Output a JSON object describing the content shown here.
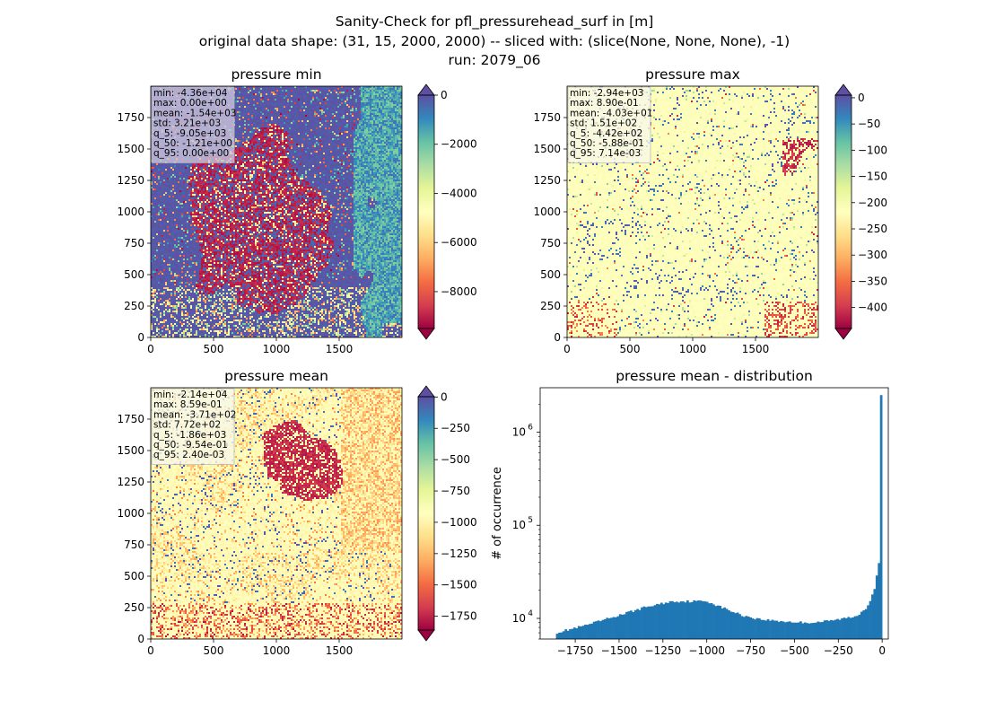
{
  "figure": {
    "title_lines": [
      "Sanity-Check for pfl_pressurehead_surf in [m]",
      "original data shape: (31, 15, 2000, 2000) -- sliced with: (slice(None, None, None), -1)",
      "run: 2079_06"
    ]
  },
  "colormap": {
    "name": "Spectral",
    "stops": [
      "#9e0142",
      "#d53e4f",
      "#f46d43",
      "#fdae61",
      "#fee08b",
      "#ffffbf",
      "#e6f598",
      "#abdda4",
      "#66c2a5",
      "#3288bd",
      "#5e4fa2"
    ]
  },
  "chart_data": [
    {
      "type": "heatmap",
      "title": "pressure min",
      "xlim": [
        0,
        2000
      ],
      "ylim": [
        0,
        2000
      ],
      "xticks": [
        0,
        500,
        1000,
        1500
      ],
      "yticks": [
        0,
        250,
        500,
        750,
        1000,
        1250,
        1500,
        1750
      ],
      "colorbar": {
        "min": -9500,
        "max": 0,
        "ticks": [
          0,
          -2000,
          -4000,
          -6000,
          -8000
        ],
        "extend": "both"
      },
      "stats": [
        "min: -4.36e+04",
        "max: 0.00e+00",
        "mean: -1.54e+03",
        "std: 3.21e+03",
        "q_5: -9.05e+03",
        "q_50: -1.21e+00",
        "q_95: 0.00e+00"
      ]
    },
    {
      "type": "heatmap",
      "title": "pressure max",
      "xlim": [
        0,
        2000
      ],
      "ylim": [
        0,
        2000
      ],
      "xticks": [
        0,
        500,
        1000,
        1500
      ],
      "yticks": [
        0,
        250,
        500,
        750,
        1000,
        1250,
        1500,
        1750
      ],
      "colorbar": {
        "min": -440,
        "max": 5,
        "ticks": [
          0,
          -50,
          -100,
          -150,
          -200,
          -250,
          -300,
          -350,
          -400
        ],
        "extend": "both"
      },
      "stats": [
        "min: -2.94e+03",
        "max: 8.90e-01",
        "mean: -4.03e+01",
        "std: 1.51e+02",
        "q_5: -4.42e+02",
        "q_50: -5.88e-01",
        "q_95: 7.14e-03"
      ]
    },
    {
      "type": "heatmap",
      "title": "pressure mean",
      "xlim": [
        0,
        2000
      ],
      "ylim": [
        0,
        2000
      ],
      "xticks": [
        0,
        500,
        1000,
        1500
      ],
      "yticks": [
        0,
        250,
        500,
        750,
        1000,
        1250,
        1500,
        1750
      ],
      "colorbar": {
        "min": -1860,
        "max": 2.4,
        "ticks": [
          0,
          -250,
          -500,
          -750,
          -1000,
          -1250,
          -1500,
          -1750
        ],
        "extend": "both"
      },
      "stats": [
        "min: -2.14e+04",
        "max: 8.59e-01",
        "mean: -3.71e+02",
        "std: 7.72e+02",
        "q_5: -1.86e+03",
        "q_50: -9.54e-01",
        "q_95: 2.40e-03"
      ]
    },
    {
      "type": "bar",
      "title": "pressure mean - distribution",
      "ylabel": "# of occurrence",
      "yscale": "log",
      "xlim": [
        -1950,
        35
      ],
      "ylim": [
        6000,
        3000000
      ],
      "xticks": [
        -1750,
        -1500,
        -1250,
        -1000,
        -750,
        -500,
        -250,
        0
      ],
      "yticks": [
        10000,
        100000,
        1000000
      ],
      "ytick_labels": [
        {
          "base": "10",
          "exp": "4"
        },
        {
          "base": "10",
          "exp": "5"
        },
        {
          "base": "10",
          "exp": "6"
        }
      ],
      "bar_color": "#1f77b4",
      "bins": {
        "start": -1860,
        "end": 0,
        "count": 150
      },
      "envelope": [
        [
          -1860,
          7000
        ],
        [
          -1700,
          8300
        ],
        [
          -1500,
          10800
        ],
        [
          -1350,
          13200
        ],
        [
          -1200,
          15200
        ],
        [
          -1000,
          15300
        ],
        [
          -900,
          12800
        ],
        [
          -800,
          10800
        ],
        [
          -700,
          9800
        ],
        [
          -600,
          9400
        ],
        [
          -500,
          9100
        ],
        [
          -400,
          9000
        ],
        [
          -300,
          9400
        ],
        [
          -150,
          10500
        ],
        [
          -90,
          13000
        ],
        [
          -60,
          17000
        ],
        [
          -40,
          22000
        ],
        [
          -20,
          38000
        ],
        [
          -12,
          40000
        ],
        [
          0,
          2500000
        ]
      ]
    }
  ]
}
